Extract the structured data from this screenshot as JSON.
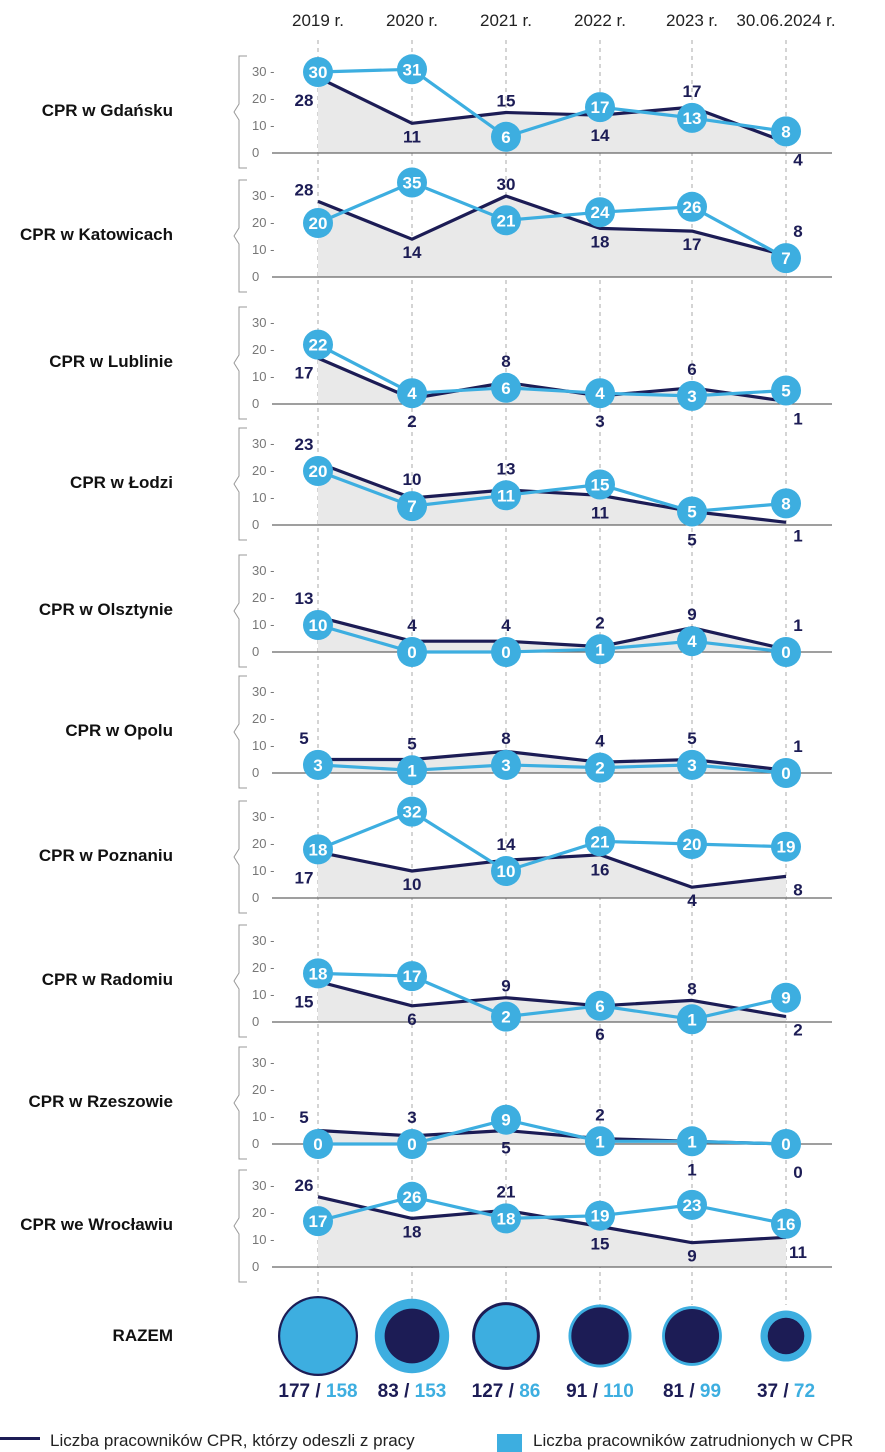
{
  "colors": {
    "left": "#1c1c55",
    "hired": "#3daee0",
    "area": "#e9e9e9",
    "axis": "#666666",
    "grid": "#aaaaaa"
  },
  "chart_data": {
    "type": "line",
    "x": [
      "2019 r.",
      "2020 r.",
      "2021 r.",
      "2022 r.",
      "2023 r.",
      "30.06.2024 r."
    ],
    "yticks": [
      "0",
      "10",
      "20",
      "30"
    ],
    "ylim": [
      0,
      35
    ],
    "series_names": {
      "left": "Liczba pracowników CPR, którzy odeszli z pracy",
      "hired": "Liczba pracowników zatrudnionych w CPR"
    },
    "rows": [
      {
        "name": "CPR w Gdańsku",
        "left": [
          28,
          11,
          15,
          14,
          17,
          4
        ],
        "hired": [
          30,
          31,
          6,
          17,
          13,
          8
        ]
      },
      {
        "name": "CPR w Katowicach",
        "left": [
          28,
          14,
          30,
          18,
          17,
          8
        ],
        "hired": [
          20,
          35,
          21,
          24,
          26,
          7
        ]
      },
      {
        "name": "CPR w Lublinie",
        "left": [
          17,
          2,
          8,
          3,
          6,
          1
        ],
        "hired": [
          22,
          4,
          6,
          4,
          3,
          5
        ]
      },
      {
        "name": "CPR w Łodzi",
        "left": [
          23,
          10,
          13,
          11,
          5,
          1
        ],
        "hired": [
          20,
          7,
          11,
          15,
          5,
          8
        ]
      },
      {
        "name": "CPR w Olsztynie",
        "left": [
          13,
          4,
          4,
          2,
          9,
          1
        ],
        "hired": [
          10,
          0,
          0,
          1,
          4,
          0
        ]
      },
      {
        "name": "CPR w Opolu",
        "left": [
          5,
          5,
          8,
          4,
          5,
          1
        ],
        "hired": [
          3,
          1,
          3,
          2,
          3,
          0
        ]
      },
      {
        "name": "CPR w Poznaniu",
        "left": [
          17,
          10,
          14,
          16,
          4,
          8
        ],
        "hired": [
          18,
          32,
          10,
          21,
          20,
          19
        ]
      },
      {
        "name": "CPR w Radomiu",
        "left": [
          15,
          6,
          9,
          6,
          8,
          2
        ],
        "hired": [
          18,
          17,
          2,
          6,
          1,
          9
        ]
      },
      {
        "name": "CPR w Rzeszowie",
        "left": [
          5,
          3,
          5,
          2,
          1,
          0
        ],
        "hired": [
          0,
          0,
          9,
          1,
          1,
          0
        ]
      },
      {
        "name": "CPR we Wrocławiu",
        "left": [
          26,
          18,
          21,
          15,
          9,
          11
        ],
        "hired": [
          17,
          26,
          18,
          19,
          23,
          16
        ]
      }
    ],
    "totals": {
      "label": "RAZEM",
      "left": [
        177,
        83,
        127,
        91,
        81,
        37
      ],
      "hired": [
        158,
        153,
        86,
        110,
        99,
        72
      ]
    }
  }
}
